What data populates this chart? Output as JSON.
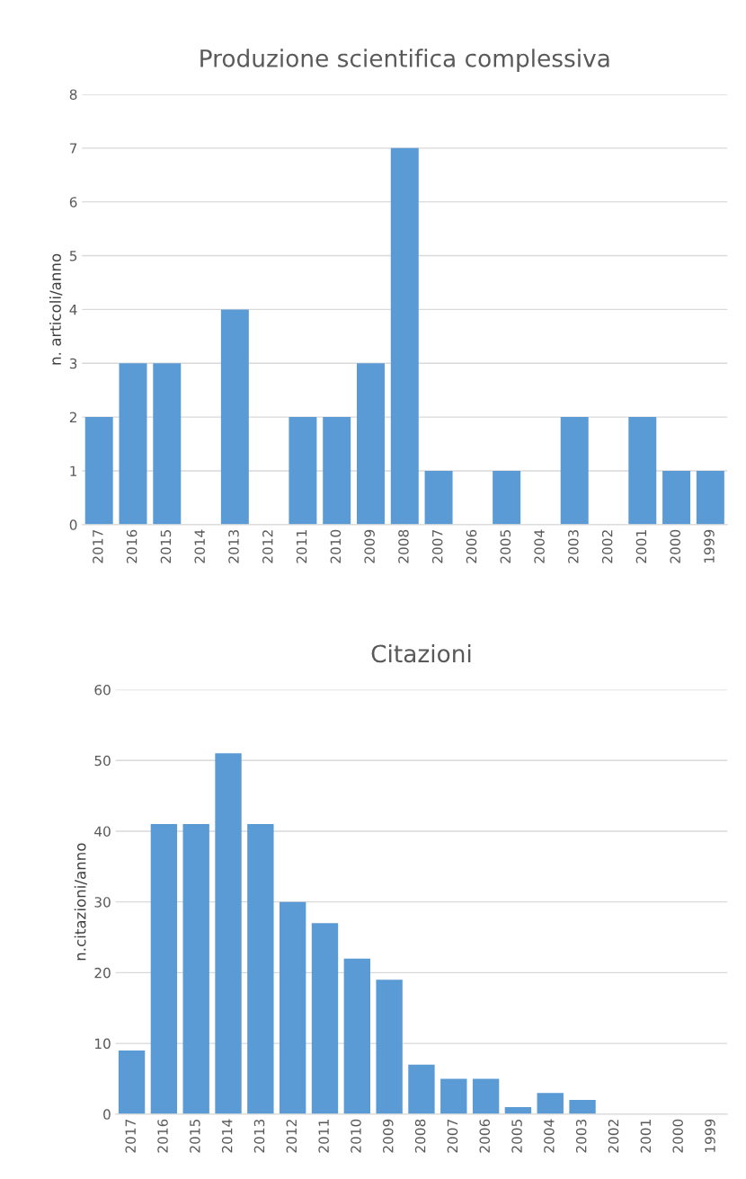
{
  "chart_data": [
    {
      "type": "bar",
      "title": "Produzione scientifica complessiva",
      "ylabel": "n. articoli/anno",
      "categories": [
        "2017",
        "2016",
        "2015",
        "2014",
        "2013",
        "2012",
        "2011",
        "2010",
        "2009",
        "2008",
        "2007",
        "2006",
        "2005",
        "2004",
        "2003",
        "2002",
        "2001",
        "2000",
        "1999"
      ],
      "values": [
        2,
        3,
        3,
        0,
        4,
        0,
        2,
        2,
        3,
        7,
        1,
        0,
        1,
        0,
        2,
        0,
        2,
        1,
        1
      ],
      "color": "#5b9bd5",
      "ylim": [
        0,
        8
      ],
      "yticks": [
        0,
        1,
        2,
        3,
        4,
        5,
        6,
        7,
        8
      ],
      "grid": "y"
    },
    {
      "type": "bar",
      "title": "Citazioni",
      "ylabel": "n.citazioni/anno",
      "categories": [
        "2017",
        "2016",
        "2015",
        "2014",
        "2013",
        "2012",
        "2011",
        "2010",
        "2009",
        "2008",
        "2007",
        "2006",
        "2005",
        "2004",
        "2003",
        "2002",
        "2001",
        "2000",
        "1999"
      ],
      "values": [
        9,
        41,
        41,
        51,
        41,
        30,
        27,
        22,
        19,
        7,
        5,
        5,
        1,
        3,
        2,
        0,
        0,
        0,
        0
      ],
      "color": "#5b9bd5",
      "ylim": [
        0,
        60
      ],
      "yticks": [
        0,
        10,
        20,
        30,
        40,
        50,
        60
      ],
      "grid": "y"
    }
  ]
}
